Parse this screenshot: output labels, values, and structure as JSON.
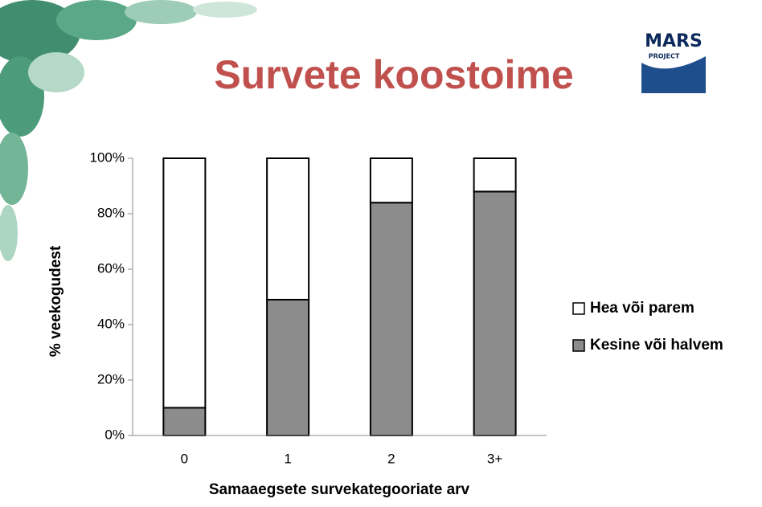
{
  "chart_data": {
    "type": "stacked_bar",
    "title": "Survete koostoime",
    "logo": {
      "name": "MARS",
      "sub": "PROJECT"
    },
    "categories": [
      "0",
      "1",
      "2",
      "3+"
    ],
    "series": [
      {
        "name": "Hea või parem",
        "color": "#ffffff",
        "values": [
          90,
          51,
          16,
          12
        ]
      },
      {
        "name": "Kesine või halvem",
        "color": "#8c8c8c",
        "values": [
          10,
          49,
          84,
          88
        ]
      }
    ],
    "ylabel": "% veekogudest",
    "xlabel": "Samaaegsete survekategooriate arv",
    "ylim": [
      0,
      100
    ],
    "yticks": [
      {
        "value": 0,
        "label": "0%"
      },
      {
        "value": 20,
        "label": "20%"
      },
      {
        "value": 40,
        "label": "40%"
      },
      {
        "value": 60,
        "label": "60%"
      },
      {
        "value": 80,
        "label": "80%"
      },
      {
        "value": 100,
        "label": "100%"
      }
    ],
    "legend": "right"
  }
}
